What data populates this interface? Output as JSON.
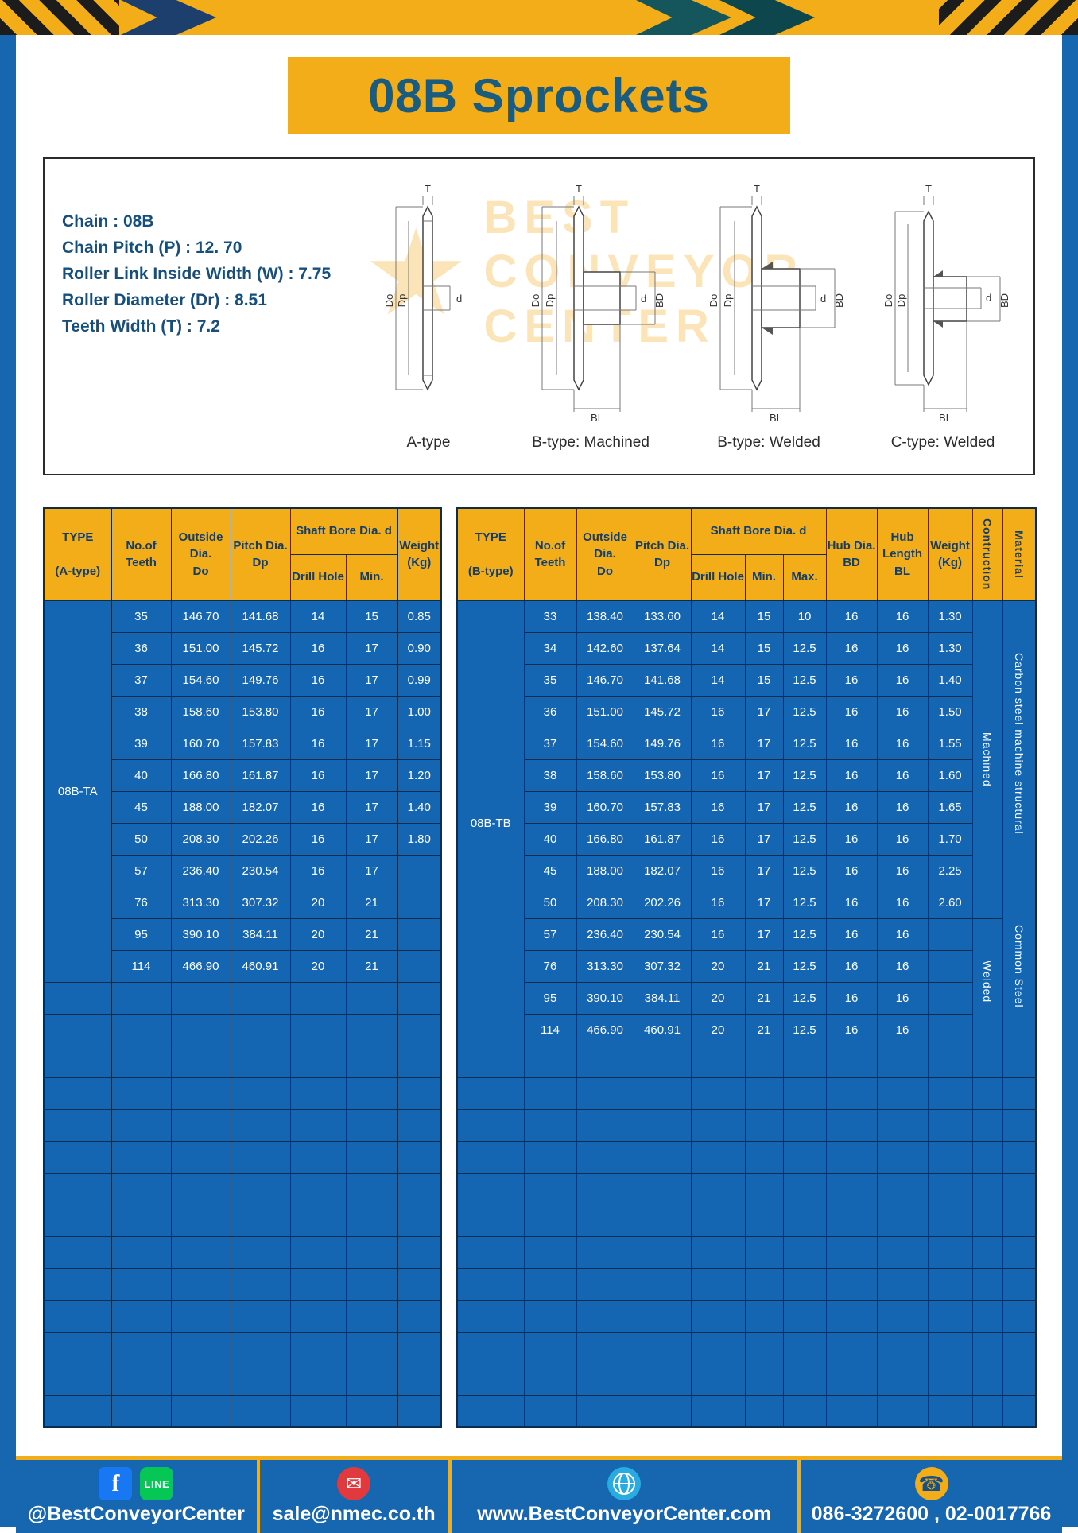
{
  "page_title": "08B Sprockets",
  "specs": {
    "lines": [
      "Chain  :  08B",
      "Chain Pitch (P)  :  12. 70",
      "Roller Link Inside Width (W)  :  7.75",
      "Roller Diameter (Dr)  :  8.51",
      "Teeth Width (T)  :  7.2"
    ],
    "diagram_labels": [
      "A-type",
      "B-type: Machined",
      "B-type: Welded",
      "C-type: Welded"
    ]
  },
  "dims": {
    "t": "T",
    "do": "Do",
    "dp": "Dp",
    "d": "d",
    "bd": "BD",
    "bl": "BL"
  },
  "watermark": {
    "star": "★",
    "line1": "BEST",
    "line2": "CONVEYOR",
    "line3": "CENTER"
  },
  "table_a": {
    "header": {
      "type": "TYPE\n\n(A-type)",
      "teeth": "No.of\nTeeth",
      "outside": "Outside\nDia.\nDo",
      "pitch": "Pitch Dia.\nDp",
      "shaft_bore": "Shaft Bore Dia. d",
      "drill_hole": "Drill Hole",
      "min": "Min.",
      "weight": "Weight\n(Kg)"
    },
    "type_value": "08B-TA",
    "rows": [
      [
        "35",
        "146.70",
        "141.68",
        "14",
        "15",
        "0.85"
      ],
      [
        "36",
        "151.00",
        "145.72",
        "16",
        "17",
        "0.90"
      ],
      [
        "37",
        "154.60",
        "149.76",
        "16",
        "17",
        "0.99"
      ],
      [
        "38",
        "158.60",
        "153.80",
        "16",
        "17",
        "1.00"
      ],
      [
        "39",
        "160.70",
        "157.83",
        "16",
        "17",
        "1.15"
      ],
      [
        "40",
        "166.80",
        "161.87",
        "16",
        "17",
        "1.20"
      ],
      [
        "45",
        "188.00",
        "182.07",
        "16",
        "17",
        "1.40"
      ],
      [
        "50",
        "208.30",
        "202.26",
        "16",
        "17",
        "1.80"
      ],
      [
        "57",
        "236.40",
        "230.54",
        "16",
        "17",
        ""
      ],
      [
        "76",
        "313.30",
        "307.32",
        "20",
        "21",
        ""
      ],
      [
        "95",
        "390.10",
        "384.11",
        "20",
        "21",
        ""
      ],
      [
        "114",
        "466.90",
        "460.91",
        "20",
        "21",
        ""
      ]
    ],
    "empty_rows": 14
  },
  "table_b": {
    "header": {
      "type": "TYPE\n\n(B-type)",
      "teeth": "No.of\nTeeth",
      "outside": "Outside\nDia.\nDo",
      "pitch": "Pitch Dia.\nDp",
      "shaft_bore": "Shaft Bore Dia. d",
      "drill_hole": "Drill Hole",
      "min": "Min.",
      "max": "Max.",
      "hub_dia": "Hub Dia.\nBD",
      "hub_length": "Hub\nLength\nBL",
      "weight": "Weight\n(Kg)",
      "construction": "Contruction",
      "material": "Material"
    },
    "type_value": "08B-TB",
    "rows": [
      [
        "33",
        "138.40",
        "133.60",
        "14",
        "15",
        "10",
        "16",
        "16",
        "1.30"
      ],
      [
        "34",
        "142.60",
        "137.64",
        "14",
        "15",
        "12.5",
        "16",
        "16",
        "1.30"
      ],
      [
        "35",
        "146.70",
        "141.68",
        "14",
        "15",
        "12.5",
        "16",
        "16",
        "1.40"
      ],
      [
        "36",
        "151.00",
        "145.72",
        "16",
        "17",
        "12.5",
        "16",
        "16",
        "1.50"
      ],
      [
        "37",
        "154.60",
        "149.76",
        "16",
        "17",
        "12.5",
        "16",
        "16",
        "1.55"
      ],
      [
        "38",
        "158.60",
        "153.80",
        "16",
        "17",
        "12.5",
        "16",
        "16",
        "1.60"
      ],
      [
        "39",
        "160.70",
        "157.83",
        "16",
        "17",
        "12.5",
        "16",
        "16",
        "1.65"
      ],
      [
        "40",
        "166.80",
        "161.87",
        "16",
        "17",
        "12.5",
        "16",
        "16",
        "1.70"
      ],
      [
        "45",
        "188.00",
        "182.07",
        "16",
        "17",
        "12.5",
        "16",
        "16",
        "2.25"
      ],
      [
        "50",
        "208.30",
        "202.26",
        "16",
        "17",
        "12.5",
        "16",
        "16",
        "2.60"
      ],
      [
        "57",
        "236.40",
        "230.54",
        "16",
        "17",
        "12.5",
        "16",
        "16",
        ""
      ],
      [
        "76",
        "313.30",
        "307.32",
        "20",
        "21",
        "12.5",
        "16",
        "16",
        ""
      ],
      [
        "95",
        "390.10",
        "384.11",
        "20",
        "21",
        "12.5",
        "16",
        "16",
        ""
      ],
      [
        "114",
        "466.90",
        "460.91",
        "20",
        "21",
        "12.5",
        "16",
        "16",
        ""
      ]
    ],
    "construction_groups": [
      {
        "label": "Machined",
        "span": 10
      },
      {
        "label": "Welded",
        "span": 4
      }
    ],
    "material_groups": [
      {
        "label": "Carbon steel  machine structural",
        "span": 9
      },
      {
        "label": "Common  Steel",
        "span": 5
      }
    ],
    "empty_rows": 12
  },
  "footer": {
    "social": "@BestConveyorCenter",
    "email": "sale@nmec.co.th",
    "website": "www.BestConveyorCenter.com",
    "phone": "086-3272600 , 02-0017766",
    "icons": {
      "facebook_glyph": "f",
      "line_label": "LINE",
      "email_glyph": "✉",
      "phone_glyph": "☎"
    }
  }
}
